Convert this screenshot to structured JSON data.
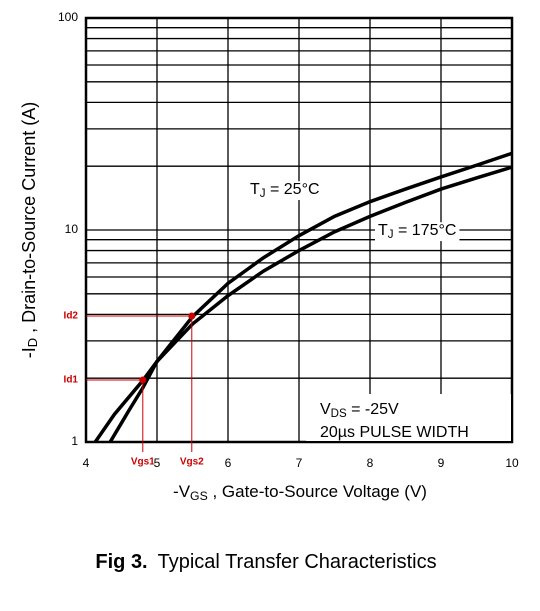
{
  "chart_data": {
    "type": "line",
    "xlabel": {
      "main": "-V",
      "sub": "GS",
      "rest": " , Gate-to-Source Voltage (V)"
    },
    "ylabel": {
      "main": "-I",
      "sub": "D",
      "rest": " , Drain-to-Source Current (A)"
    },
    "xlim": [
      4,
      10
    ],
    "xticks": [
      4,
      5,
      6,
      7,
      8,
      9,
      10
    ],
    "ylim": [
      1,
      100
    ],
    "yticks": [
      1,
      10,
      100
    ],
    "log_y": true,
    "y_minor_ticks": [
      2,
      3,
      4,
      5,
      6,
      7,
      8,
      9,
      20,
      30,
      40,
      50,
      60,
      70,
      80,
      90
    ],
    "series": [
      {
        "name": {
          "main": "T",
          "sub": "J",
          "rest": " = 25°C"
        },
        "color": "#000000",
        "x": [
          4.34,
          4.6,
          4.8,
          5.0,
          5.5,
          6.0,
          6.5,
          7.0,
          7.5,
          8.0,
          8.5,
          9.0,
          9.5,
          10.0
        ],
        "values": [
          1,
          1.4,
          1.8,
          2.4,
          3.9,
          5.6,
          7.4,
          9.4,
          11.6,
          13.6,
          15.6,
          17.8,
          20.2,
          23
        ]
      },
      {
        "name": {
          "main": "T",
          "sub": "J",
          "rest": " = 175°C"
        },
        "color": "#000000",
        "x": [
          4.13,
          4.4,
          4.8,
          5.0,
          5.5,
          6.0,
          6.5,
          7.0,
          7.5,
          8.0,
          8.5,
          9.0,
          9.5,
          10.0
        ],
        "values": [
          1,
          1.35,
          1.95,
          2.4,
          3.6,
          4.9,
          6.4,
          8,
          9.8,
          11.6,
          13.5,
          15.6,
          17.6,
          19.8
        ]
      }
    ],
    "annotations": [
      {
        "label": "Id1",
        "value": 1.96,
        "x_label": "Vgs1",
        "x": 4.8,
        "color": "#cc0000"
      },
      {
        "label": "Id2",
        "value": 3.93,
        "x_label": "Vgs2",
        "x": 5.49,
        "color": "#cc0000"
      }
    ],
    "note": [
      {
        "main": "V",
        "sub": "DS",
        "rest": " = -25V"
      },
      {
        "main": "20µs PULSE WIDTH"
      }
    ],
    "caption": {
      "bold": "Fig 3.",
      "text": "Typical Transfer Characteristics"
    }
  }
}
